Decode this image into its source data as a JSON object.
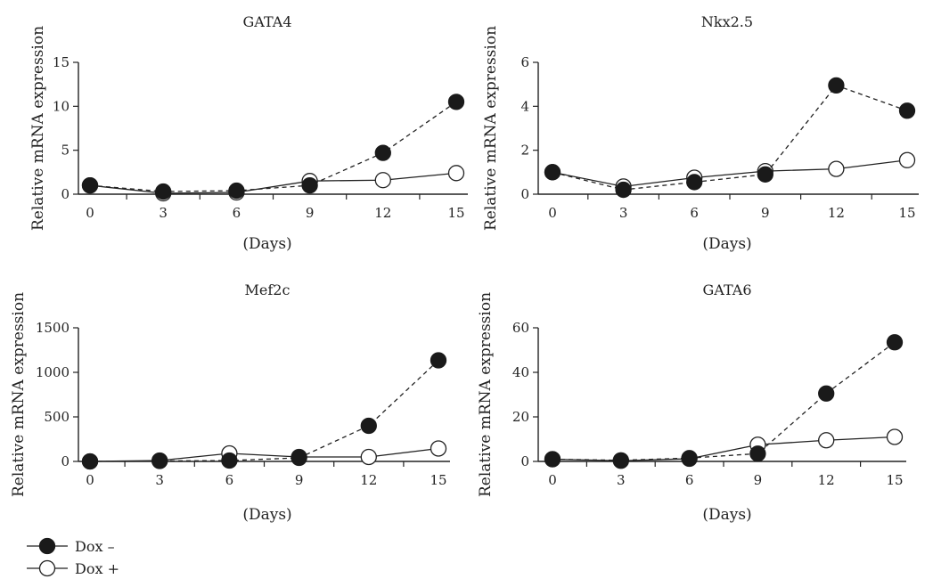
{
  "chart_data": [
    {
      "type": "line",
      "title": "GATA4",
      "xlabel": "(Days)",
      "ylabel": "Relative mRNA expression",
      "x": [
        0,
        3,
        6,
        9,
        12,
        15
      ],
      "xticks": [
        "0",
        "3",
        "6",
        "9",
        "12",
        "15"
      ],
      "yticks": [
        "0",
        "5",
        "10",
        "15"
      ],
      "ylim": [
        0,
        15
      ],
      "series": [
        {
          "name": "Dox –",
          "marker": "filled",
          "line": "dashed",
          "values": [
            1.0,
            0.3,
            0.4,
            1.0,
            4.7,
            10.5
          ]
        },
        {
          "name": "Dox +",
          "marker": "open",
          "line": "solid",
          "values": [
            1.0,
            0.1,
            0.2,
            1.5,
            1.6,
            2.4
          ]
        }
      ]
    },
    {
      "type": "line",
      "title": "Nkx2.5",
      "xlabel": "(Days)",
      "ylabel": "Relative mRNA expression",
      "x": [
        0,
        3,
        6,
        9,
        12,
        15
      ],
      "xticks": [
        "0",
        "3",
        "6",
        "9",
        "12",
        "15"
      ],
      "yticks": [
        "0",
        "2",
        "4",
        "6"
      ],
      "ylim": [
        0,
        6
      ],
      "series": [
        {
          "name": "Dox –",
          "marker": "filled",
          "line": "dashed",
          "values": [
            1.0,
            0.2,
            0.55,
            0.9,
            4.95,
            3.8
          ]
        },
        {
          "name": "Dox +",
          "marker": "open",
          "line": "solid",
          "values": [
            1.0,
            0.35,
            0.75,
            1.05,
            1.15,
            1.55
          ]
        }
      ]
    },
    {
      "type": "line",
      "title": "Mef2c",
      "xlabel": "(Days)",
      "ylabel": "Relative mRNA expression",
      "x": [
        0,
        3,
        6,
        9,
        12,
        15
      ],
      "xticks": [
        "0",
        "3",
        "6",
        "9",
        "12",
        "15"
      ],
      "yticks": [
        "0",
        "500",
        "1000",
        "1500"
      ],
      "ylim": [
        0,
        1500
      ],
      "series": [
        {
          "name": "Dox –",
          "marker": "filled",
          "line": "dashed",
          "values": [
            0,
            5,
            10,
            40,
            400,
            1135
          ]
        },
        {
          "name": "Dox +",
          "marker": "open",
          "line": "solid",
          "values": [
            0,
            10,
            90,
            50,
            50,
            145
          ]
        }
      ]
    },
    {
      "type": "line",
      "title": "GATA6",
      "xlabel": "(Days)",
      "ylabel": "Relative mRNA expression",
      "x": [
        0,
        3,
        6,
        9,
        12,
        15
      ],
      "xticks": [
        "0",
        "3",
        "6",
        "9",
        "12",
        "15"
      ],
      "yticks": [
        "0",
        "20",
        "40",
        "60"
      ],
      "ylim": [
        0,
        60
      ],
      "series": [
        {
          "name": "Dox –",
          "marker": "filled",
          "line": "dashed",
          "values": [
            1.0,
            0.5,
            1.5,
            3.5,
            30.5,
            53.5
          ]
        },
        {
          "name": "Dox +",
          "marker": "open",
          "line": "solid",
          "values": [
            1.0,
            0.3,
            1.2,
            7.5,
            9.5,
            11.0
          ]
        }
      ]
    }
  ],
  "legend": [
    {
      "label": "Dox –",
      "marker": "filled"
    },
    {
      "label": "Dox +",
      "marker": "open"
    }
  ]
}
